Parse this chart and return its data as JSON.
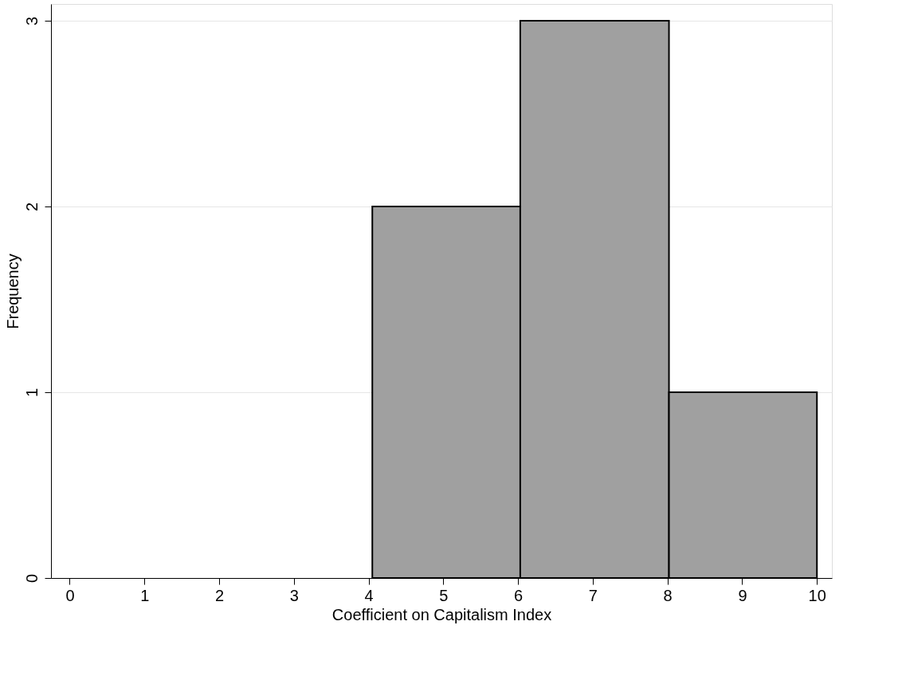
{
  "chart_data": {
    "type": "histogram",
    "xlabel": "Coefficient on Capitalism Index",
    "ylabel": "Frequency",
    "bins": [
      4.05,
      6.03,
      8.02,
      10.0
    ],
    "values": [
      2,
      3,
      1
    ],
    "color": "#a0a0a0",
    "xlim": [
      -0.25,
      10.2
    ],
    "xticks": [
      0,
      1,
      2,
      3,
      4,
      5,
      6,
      7,
      8,
      9,
      10
    ],
    "ylim": [
      0,
      3.09
    ],
    "yticks": [
      0,
      1,
      2,
      3
    ],
    "grid": "y"
  }
}
